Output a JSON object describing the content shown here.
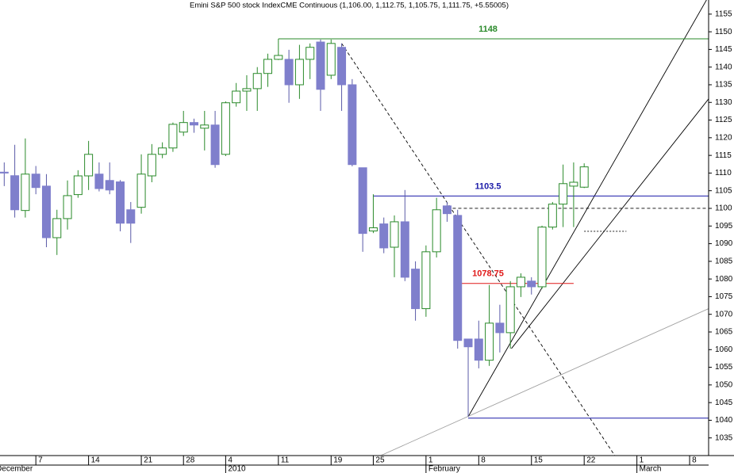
{
  "chart_data": {
    "type": "candlestick",
    "title": "Emini S&P 500 stock IndexCME Continuous (1,106.00, 1,112.75, 1,105.75, 1,111.75, +5.55005)",
    "x": [
      0,
      1,
      2,
      3,
      4,
      5,
      6,
      7,
      8,
      9,
      10,
      11,
      12,
      13,
      14,
      15,
      16,
      17,
      18,
      19,
      20,
      21,
      22,
      23,
      24,
      25,
      26,
      27,
      28,
      29,
      30,
      31,
      32,
      33,
      34,
      35,
      36,
      37,
      38,
      39,
      40,
      41,
      42,
      43,
      44,
      45,
      46,
      47,
      48,
      49,
      50,
      51,
      52,
      53,
      54,
      55
    ],
    "open": [
      1110.25,
      1109.25,
      1099.4,
      1109.7,
      1106.3,
      1091.7,
      1097.1,
      1103.9,
      1109.2,
      1109.7,
      1107.9,
      1107.5,
      1099.6,
      1100.3,
      1109.2,
      1115.3,
      1117.1,
      1121.6,
      1124.3,
      1122.7,
      1123.6,
      1115.3,
      1129.9,
      1133.2,
      1133.9,
      1138.2,
      1142.2,
      1142.2,
      1135,
      1142.2,
      1147.1,
      1137.7,
      1145.6,
      1135,
      1111.5,
      1093.6,
      1095.6,
      1089,
      1096.2,
      1082.8,
      1071.6,
      1087.7,
      1100.7,
      1098,
      1063,
      1063,
      1057,
      1067.5,
      1064.8,
      1077.8,
      1079.4,
      1077.8,
      1094.7,
      1101.2,
      1106.3,
      1106
    ],
    "high": [
      1113,
      1118,
      1119.8,
      1112,
      1109.7,
      1099.6,
      1107.9,
      1110.8,
      1119.1,
      1113,
      1113,
      1108,
      1101.8,
      1115.3,
      1118.2,
      1118.7,
      1124.3,
      1127.6,
      1125.4,
      1127.6,
      1127.6,
      1130.3,
      1135.5,
      1137.7,
      1140,
      1143.8,
      1148,
      1144.9,
      1146.3,
      1146.7,
      1147.8,
      1147.8,
      1146.7,
      1136.6,
      1111.5,
      1104,
      1097.4,
      1098,
      1105.2,
      1085,
      1089.5,
      1103,
      1101.8,
      1099.6,
      1063,
      1068.2,
      1078.3,
      1072.7,
      1079.4,
      1081.6,
      1080.5,
      1095.1,
      1101.8,
      1112.4,
      1113,
      1112.75
    ],
    "low": [
      1106.3,
      1097.4,
      1097.4,
      1104,
      1089,
      1086.8,
      1094,
      1103,
      1105.2,
      1104.8,
      1104,
      1093.5,
      1090.2,
      1098.5,
      1107.4,
      1114.2,
      1116,
      1120.5,
      1121.4,
      1116.4,
      1111.5,
      1114.8,
      1128.8,
      1127.6,
      1127.6,
      1134.4,
      1142,
      1129.9,
      1131,
      1136.6,
      1127.6,
      1136.6,
      1127.6,
      1111.9,
      1087.7,
      1093,
      1087.3,
      1080.5,
      1079.4,
      1068.2,
      1069.3,
      1086.1,
      1096.2,
      1060.3,
      1041,
      1054.7,
      1055.4,
      1059.2,
      1060.3,
      1074.9,
      1075.6,
      1077.2,
      1094,
      1094.7,
      1094.7,
      1105.75
    ],
    "close": [
      1110,
      1099.6,
      1109.7,
      1105.9,
      1091.7,
      1097.1,
      1103.6,
      1109.2,
      1115.3,
      1105.6,
      1105.2,
      1095.8,
      1095.8,
      1109.7,
      1115.3,
      1117.1,
      1123.8,
      1124.3,
      1123.6,
      1123.6,
      1112.4,
      1129.9,
      1133.2,
      1133.9,
      1138.2,
      1142.2,
      1143.3,
      1135,
      1142.2,
      1145.6,
      1133.7,
      1146.7,
      1135,
      1112.4,
      1092.9,
      1094.5,
      1088.8,
      1096.2,
      1080.5,
      1071.6,
      1087.7,
      1099.6,
      1098.5,
      1062.6,
      1060.8,
      1057,
      1067.5,
      1064.8,
      1077.8,
      1080.5,
      1077.8,
      1094.7,
      1101.2,
      1107,
      1107.4,
      1111.75
    ],
    "up_color": "#2a8a2a",
    "down_color": "#7f7fcc",
    "down_edge": "#5a5aa8",
    "xlim": [
      -0.4,
      66.8
    ],
    "ylim": [
      1030,
      1159
    ],
    "yticks": [
      1035,
      1040,
      1045,
      1050,
      1055,
      1060,
      1065,
      1070,
      1075,
      1080,
      1085,
      1090,
      1095,
      1100,
      1105,
      1110,
      1115,
      1120,
      1125,
      1130,
      1135,
      1140,
      1145,
      1150,
      1155
    ],
    "xticks": [
      {
        "value": 3,
        "label": "7"
      },
      {
        "value": 8,
        "label": "14"
      },
      {
        "value": 13,
        "label": "21"
      },
      {
        "value": 17,
        "label": "28"
      },
      {
        "value": 21,
        "label": "4"
      },
      {
        "value": 26,
        "label": "11"
      },
      {
        "value": 31,
        "label": "19"
      },
      {
        "value": 35,
        "label": "25"
      },
      {
        "value": 40,
        "label": "1"
      },
      {
        "value": 45,
        "label": "8"
      },
      {
        "value": 50,
        "label": "15"
      },
      {
        "value": 55,
        "label": "22"
      },
      {
        "value": 60,
        "label": "1"
      },
      {
        "value": 65,
        "label": "8"
      }
    ],
    "month_ticks": [
      {
        "value": -1,
        "label": "December"
      },
      {
        "value": 21,
        "label": "2010"
      },
      {
        "value": 40,
        "label": "February"
      },
      {
        "value": 60,
        "label": "March"
      }
    ],
    "levels": [
      {
        "value": 1148,
        "from": 26,
        "color": "#2a8a2a"
      },
      {
        "value": 1103.5,
        "from": 35,
        "color": "#1a1aa8"
      },
      {
        "value": 1078.75,
        "from": 43,
        "to": 54,
        "color": "#e01818"
      }
    ],
    "trendlines": [
      {
        "x": [
          44,
          66.6
        ],
        "y": [
          1041,
          1159
        ],
        "style": "solid",
        "color": "#000000"
      },
      {
        "x": [
          48.1,
          66.8
        ],
        "y": [
          1060.3,
          1131
        ],
        "style": "solid",
        "color": "#000000"
      },
      {
        "x": [
          32,
          57.9
        ],
        "y": [
          1146.7,
          1030
        ],
        "style": "dashed",
        "color": "#000000"
      },
      {
        "x": [
          35.7,
          66.8
        ],
        "y": [
          1030,
          1071.6
        ],
        "style": "solid",
        "color": "#a0a0a0"
      },
      {
        "x": [
          42,
          66.8
        ],
        "y": [
          1100,
          1100
        ],
        "style": "dashed",
        "color": "#000000"
      },
      {
        "x": [
          55,
          59
        ],
        "y": [
          1093.5,
          1093.5
        ],
        "style": "dotted",
        "color": "#000000"
      },
      {
        "x": [
          44,
          66.8
        ],
        "y": [
          1040.6,
          1040.6
        ],
        "style": "solid",
        "color": "#1a1aa8"
      }
    ]
  }
}
